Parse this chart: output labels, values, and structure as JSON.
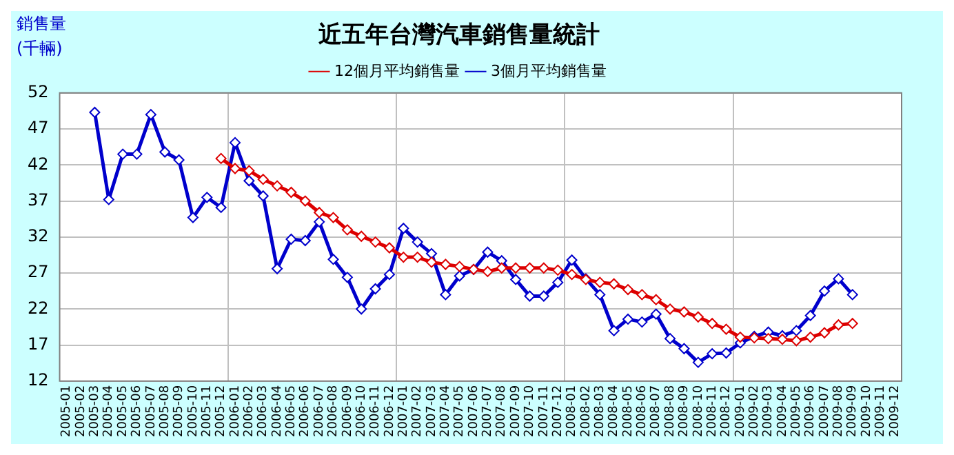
{
  "chart_data": {
    "type": "line",
    "title": "近五年台灣汽車銷售量統計",
    "ylabel": "銷售量 (千輛)",
    "categories": [
      "2005-01",
      "2005-02",
      "2005-03",
      "2005-04",
      "2005-05",
      "2005-06",
      "2005-07",
      "2005-08",
      "2005-09",
      "2005-10",
      "2005-11",
      "2005-12",
      "2006-01",
      "2006-02",
      "2006-03",
      "2006-04",
      "2006-05",
      "2006-06",
      "2006-07",
      "2006-08",
      "2006-09",
      "2006-10",
      "2006-11",
      "2006-12",
      "2007-01",
      "2007-02",
      "2007-03",
      "2007-04",
      "2007-05",
      "2007-06",
      "2007-07",
      "2007-08",
      "2007-09",
      "2007-10",
      "2007-11",
      "2007-12",
      "2008-01",
      "2008-02",
      "2008-03",
      "2008-04",
      "2008-05",
      "2008-06",
      "2008-07",
      "2008-08",
      "2008-09",
      "2008-10",
      "2008-11",
      "2008-12",
      "2009-01",
      "2009-02",
      "2009-03",
      "2009-04",
      "2009-05",
      "2009-06",
      "2009-07",
      "2009-08",
      "2009-09",
      "2009-10",
      "2009-11",
      "2009-12"
    ],
    "series": [
      {
        "name": "3個月平均銷售量",
        "color": "#0000cc",
        "values": [
          null,
          null,
          49.3,
          37.2,
          43.5,
          43.5,
          49.0,
          43.8,
          42.7,
          34.7,
          37.5,
          36.1,
          45.1,
          39.8,
          37.7,
          27.6,
          31.7,
          31.5,
          34.1,
          28.9,
          26.4,
          22.0,
          24.8,
          26.8,
          33.2,
          31.3,
          29.7,
          24.0,
          26.6,
          27.5,
          29.9,
          28.7,
          26.1,
          23.8,
          23.8,
          25.7,
          28.8,
          26.2,
          24.0,
          19.0,
          20.6,
          20.2,
          21.3,
          17.9,
          16.5,
          14.6,
          15.8,
          15.9,
          17.3,
          18.2,
          18.8,
          18.3,
          19.0,
          21.1,
          24.5,
          26.2,
          24.0,
          null,
          null,
          null
        ]
      },
      {
        "name": "12個月平均銷售量",
        "color": "#dd0000",
        "values": [
          null,
          null,
          null,
          null,
          null,
          null,
          null,
          null,
          null,
          null,
          null,
          42.9,
          41.5,
          41.2,
          40.0,
          39.1,
          38.2,
          37.0,
          35.4,
          34.7,
          33.0,
          32.1,
          31.3,
          30.5,
          29.2,
          29.2,
          28.5,
          28.2,
          27.9,
          27.5,
          27.2,
          27.7,
          27.7,
          27.7,
          27.7,
          27.4,
          26.8,
          26.1,
          25.7,
          25.5,
          24.7,
          24.0,
          23.3,
          22.0,
          21.6,
          20.9,
          20.0,
          19.2,
          18.1,
          18.0,
          17.9,
          17.8,
          17.6,
          18.1,
          18.7,
          19.8,
          20.0,
          null,
          null,
          null
        ]
      }
    ],
    "ylim": [
      12,
      52
    ],
    "yticks": [
      12,
      17,
      22,
      27,
      32,
      37,
      42,
      47,
      52
    ],
    "grid": true,
    "legend": "top",
    "marker": "diamond",
    "line_style": "solid"
  }
}
